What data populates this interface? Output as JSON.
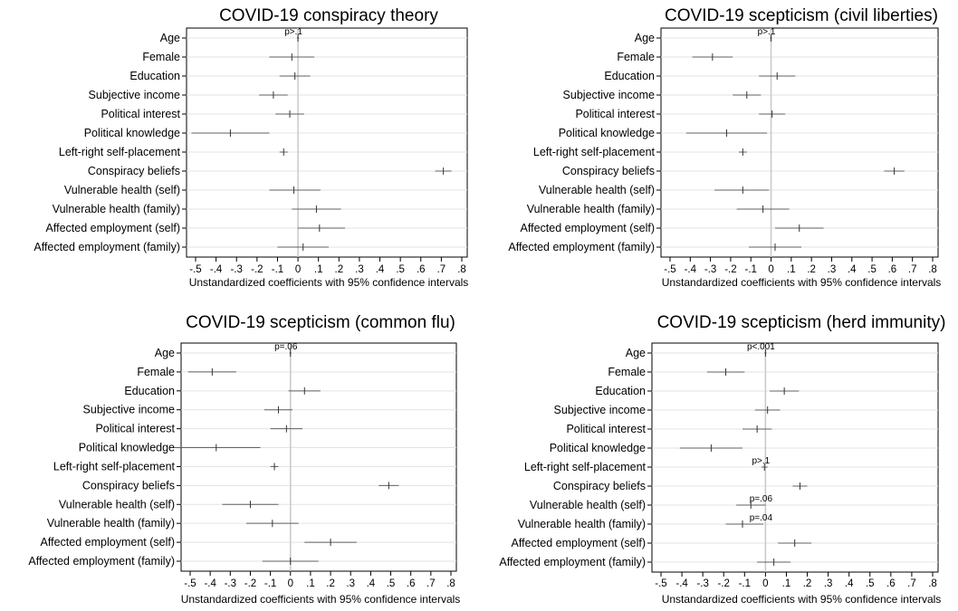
{
  "chart_data": [
    {
      "type": "forest",
      "title": "COVID-19 conspiracy theory",
      "xlabel": "Unstandardized coefficients with 95% confidence intervals",
      "xlim": [
        -0.5,
        0.8
      ],
      "xticks": [
        "-.5",
        "-.4",
        "-.3",
        "-.2",
        "-.1",
        "0",
        ".1",
        ".2",
        ".3",
        ".4",
        ".5",
        ".6",
        ".7",
        ".8"
      ],
      "reference_line": 0,
      "grid": true,
      "categories": [
        "Age",
        "Female",
        "Education",
        "Subjective income",
        "Political interest",
        "Political knowledge",
        "Left-right self-placement",
        "Conspiracy beliefs",
        "Vulnerable health (self)",
        "Vulnerable health (family)",
        "Affected employment (self)",
        "Affected employment (family)"
      ],
      "estimates": [
        0.0,
        -0.03,
        -0.015,
        -0.12,
        -0.04,
        -0.33,
        -0.07,
        0.71,
        -0.02,
        0.09,
        0.105,
        0.025
      ],
      "ci_low": [
        -0.005,
        -0.14,
        -0.09,
        -0.19,
        -0.11,
        -0.52,
        -0.09,
        0.67,
        -0.14,
        -0.03,
        0.0,
        -0.1
      ],
      "ci_high": [
        0.005,
        0.08,
        0.06,
        -0.05,
        0.03,
        -0.14,
        -0.05,
        0.75,
        0.11,
        0.21,
        0.23,
        0.15
      ],
      "annotations": [
        {
          "category": "Age",
          "text": "p>.1"
        }
      ]
    },
    {
      "type": "forest",
      "title": "COVID-19 scepticism (civil liberties)",
      "xlabel": "Unstandardized coefficients with 95% confidence intervals",
      "xlim": [
        -0.5,
        0.8
      ],
      "xticks": [
        "-.5",
        "-.4",
        "-.3",
        "-.2",
        "-.1",
        "0",
        ".1",
        ".2",
        ".3",
        ".4",
        ".5",
        ".6",
        ".7",
        ".8"
      ],
      "reference_line": 0,
      "grid": true,
      "categories": [
        "Age",
        "Female",
        "Education",
        "Subjective income",
        "Political interest",
        "Political knowledge",
        "Left-right self-placement",
        "Conspiracy beliefs",
        "Vulnerable health (self)",
        "Vulnerable health (family)",
        "Affected employment (self)",
        "Affected employment (family)"
      ],
      "estimates": [
        0.0,
        -0.29,
        0.03,
        -0.12,
        0.005,
        -0.22,
        -0.14,
        0.61,
        -0.14,
        -0.04,
        0.14,
        0.02
      ],
      "ci_low": [
        -0.005,
        -0.39,
        -0.06,
        -0.19,
        -0.06,
        -0.42,
        -0.16,
        0.56,
        -0.28,
        -0.17,
        0.02,
        -0.11
      ],
      "ci_high": [
        0.005,
        -0.19,
        0.12,
        -0.05,
        0.07,
        -0.02,
        -0.12,
        0.66,
        -0.01,
        0.09,
        0.26,
        0.15
      ],
      "annotations": [
        {
          "category": "Age",
          "text": "p>.1"
        }
      ]
    },
    {
      "type": "forest",
      "title": "COVID-19 scepticism (common flu)",
      "xlabel": "Unstandardized coefficients with 95% confidence intervals",
      "xlim": [
        -0.5,
        0.8
      ],
      "xticks": [
        "-.5",
        "-.4",
        "-.3",
        "-.2",
        "-.1",
        "0",
        ".1",
        ".2",
        ".3",
        ".4",
        ".5",
        ".6",
        ".7",
        ".8"
      ],
      "reference_line": 0,
      "grid": true,
      "categories": [
        "Age",
        "Female",
        "Education",
        "Subjective income",
        "Political interest",
        "Political knowledge",
        "Left-right self-placement",
        "Conspiracy beliefs",
        "Vulnerable health (self)",
        "Vulnerable health (family)",
        "Affected employment (self)",
        "Affected employment (family)"
      ],
      "estimates": [
        0.0,
        -0.39,
        0.07,
        -0.06,
        -0.02,
        -0.37,
        -0.08,
        0.49,
        -0.2,
        -0.09,
        0.2,
        0.0
      ],
      "ci_low": [
        -0.005,
        -0.51,
        -0.01,
        -0.13,
        -0.1,
        -0.58,
        -0.1,
        0.44,
        -0.34,
        -0.22,
        0.07,
        -0.14
      ],
      "ci_high": [
        0.005,
        -0.27,
        0.15,
        0.01,
        0.06,
        -0.15,
        -0.06,
        0.54,
        -0.06,
        0.04,
        0.33,
        0.14
      ],
      "annotations": [
        {
          "category": "Age",
          "text": "p=.06"
        }
      ]
    },
    {
      "type": "forest",
      "title": "COVID-19 scepticism (herd immunity)",
      "xlabel": "Unstandardized coefficients with 95% confidence intervals",
      "xlim": [
        -0.5,
        0.8
      ],
      "xticks": [
        "-.5",
        "-.4",
        "-.3",
        "-.2",
        "-.1",
        "0",
        ".1",
        ".2",
        ".3",
        ".4",
        ".5",
        ".6",
        ".7",
        ".8"
      ],
      "reference_line": 0,
      "grid": true,
      "categories": [
        "Age",
        "Female",
        "Education",
        "Subjective income",
        "Political interest",
        "Political knowledge",
        "Left-right self-placement",
        "Conspiracy beliefs",
        "Vulnerable health (self)",
        "Vulnerable health (family)",
        "Affected employment (self)",
        "Affected employment (family)"
      ],
      "estimates": [
        0.0,
        -0.19,
        0.09,
        0.01,
        -0.04,
        -0.26,
        -0.005,
        0.165,
        -0.07,
        -0.11,
        0.14,
        0.04
      ],
      "ci_low": [
        -0.005,
        -0.28,
        0.02,
        -0.05,
        -0.11,
        -0.41,
        -0.02,
        0.13,
        -0.14,
        -0.19,
        0.06,
        -0.04
      ],
      "ci_high": [
        0.005,
        -0.1,
        0.16,
        0.07,
        0.03,
        -0.11,
        0.01,
        0.2,
        0.0,
        -0.01,
        0.22,
        0.12
      ],
      "annotations": [
        {
          "category": "Age",
          "text": "p<.001"
        },
        {
          "category": "Left-right self-placement",
          "text": "p>.1"
        },
        {
          "category": "Vulnerable health (self)",
          "text": "p=.06"
        },
        {
          "category": "Vulnerable health (family)",
          "text": "p=.04"
        }
      ]
    }
  ]
}
